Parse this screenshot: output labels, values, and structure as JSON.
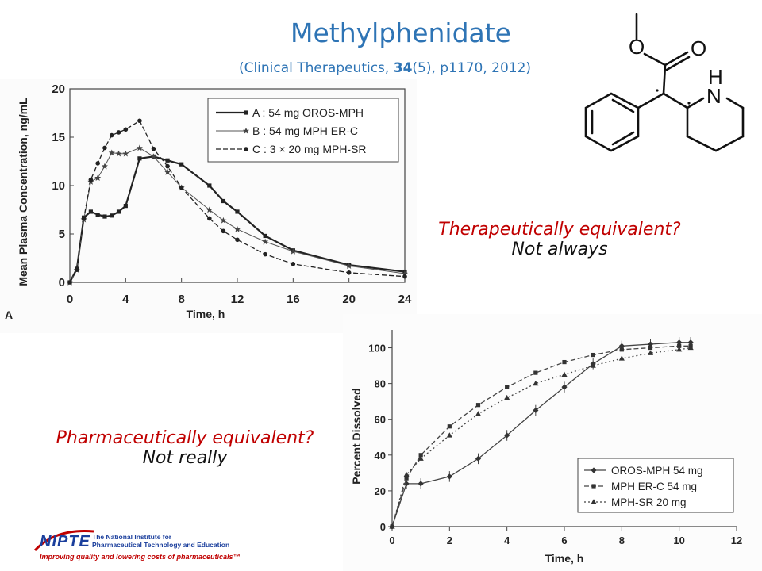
{
  "slide": {
    "title": "Methylphenidate",
    "citation_pre": "(Clinical Therapeutics, ",
    "citation_vol": "34",
    "citation_post": "(5), p1170, 2012)",
    "q1_ask": "Therapeutically equivalent?",
    "q1_ans": "Not always",
    "q2_ask": "Pharmaceutically equivalent?",
    "q2_ans": "Not really"
  },
  "structure": {
    "atoms": [
      "O",
      "O",
      "H",
      "N"
    ]
  },
  "logo": {
    "mark": "NIPTE",
    "line1": "The National Institute for",
    "line2": "Pharmaceutical Technology and Education",
    "tagline": "Improving quality and lowering costs of pharmaceuticals™"
  },
  "chart_data": [
    {
      "type": "line",
      "panel_label": "A",
      "xlabel": "Time, h",
      "ylabel": "Mean Plasma Concentration, ng/mL",
      "xlim": [
        0,
        24
      ],
      "ylim": [
        0,
        20
      ],
      "xticks": [
        0,
        4,
        8,
        12,
        16,
        20,
        24
      ],
      "yticks": [
        0,
        5,
        10,
        15,
        20
      ],
      "legend_position": "top-right",
      "series": [
        {
          "name": "A : 54 mg OROS-MPH",
          "x": [
            0,
            0.5,
            1,
            1.5,
            2,
            2.5,
            3,
            3.5,
            4,
            5,
            6,
            7,
            8,
            10,
            11,
            12,
            14,
            16,
            20,
            24
          ],
          "y": [
            0,
            1.4,
            6.7,
            7.3,
            7.0,
            6.8,
            6.9,
            7.3,
            7.9,
            12.8,
            13.0,
            12.6,
            12.2,
            10.0,
            8.4,
            7.3,
            4.8,
            3.3,
            1.8,
            1.1
          ]
        },
        {
          "name": "B : 54 mg MPH ER-C",
          "x": [
            0,
            0.5,
            1,
            1.5,
            2,
            2.5,
            3,
            3.5,
            4,
            5,
            6,
            7,
            8,
            10,
            11,
            12,
            14,
            16,
            20,
            24
          ],
          "y": [
            0,
            1.3,
            6.5,
            10.4,
            10.8,
            12.0,
            13.4,
            13.3,
            13.3,
            13.9,
            13.0,
            11.4,
            9.8,
            7.5,
            6.4,
            5.5,
            4.2,
            3.2,
            1.7,
            0.9
          ]
        },
        {
          "name": "C : 3 × 20 mg MPH-SR",
          "x": [
            0,
            0.5,
            1,
            1.5,
            2,
            2.5,
            3,
            3.5,
            4,
            5,
            6,
            7,
            8,
            10,
            11,
            12,
            14,
            16,
            20,
            24
          ],
          "y": [
            0,
            1.3,
            6.6,
            10.6,
            12.3,
            13.9,
            15.2,
            15.5,
            15.8,
            16.7,
            13.8,
            12.0,
            9.8,
            6.6,
            5.3,
            4.4,
            2.9,
            1.9,
            1.0,
            0.6
          ]
        }
      ]
    },
    {
      "type": "line",
      "xlabel": "Time, h",
      "ylabel": "Percent Dissolved",
      "xlim": [
        0,
        12
      ],
      "ylim": [
        0,
        110
      ],
      "xticks": [
        0,
        2,
        4,
        6,
        8,
        10,
        12
      ],
      "yticks": [
        0,
        20,
        40,
        60,
        80,
        100
      ],
      "legend_position": "bottom-right",
      "series": [
        {
          "name": "OROS-MPH 54 mg",
          "x": [
            0,
            0.5,
            1,
            2,
            3,
            4,
            5,
            6,
            7,
            8,
            9,
            10,
            10.4
          ],
          "y": [
            0,
            24,
            24,
            28,
            38,
            51,
            65,
            78,
            91,
            101,
            102,
            103,
            103
          ]
        },
        {
          "name": "MPH ER-C 54 mg",
          "x": [
            0,
            0.5,
            1,
            2,
            3,
            4,
            5,
            6,
            7,
            8,
            9,
            10,
            10.4
          ],
          "y": [
            0,
            27,
            40,
            56,
            68,
            78,
            86,
            92,
            96,
            99,
            100,
            101,
            101
          ]
        },
        {
          "name": "MPH-SR 20 mg",
          "x": [
            0,
            0.5,
            1,
            2,
            3,
            4,
            5,
            6,
            7,
            8,
            9,
            10,
            10.4
          ],
          "y": [
            0,
            29,
            38,
            51,
            63,
            72,
            80,
            85,
            90,
            94,
            97,
            99,
            100
          ]
        }
      ]
    }
  ],
  "colors": {
    "title": "#2e74b5",
    "question": "#c00000",
    "plot_line": "#333333"
  }
}
